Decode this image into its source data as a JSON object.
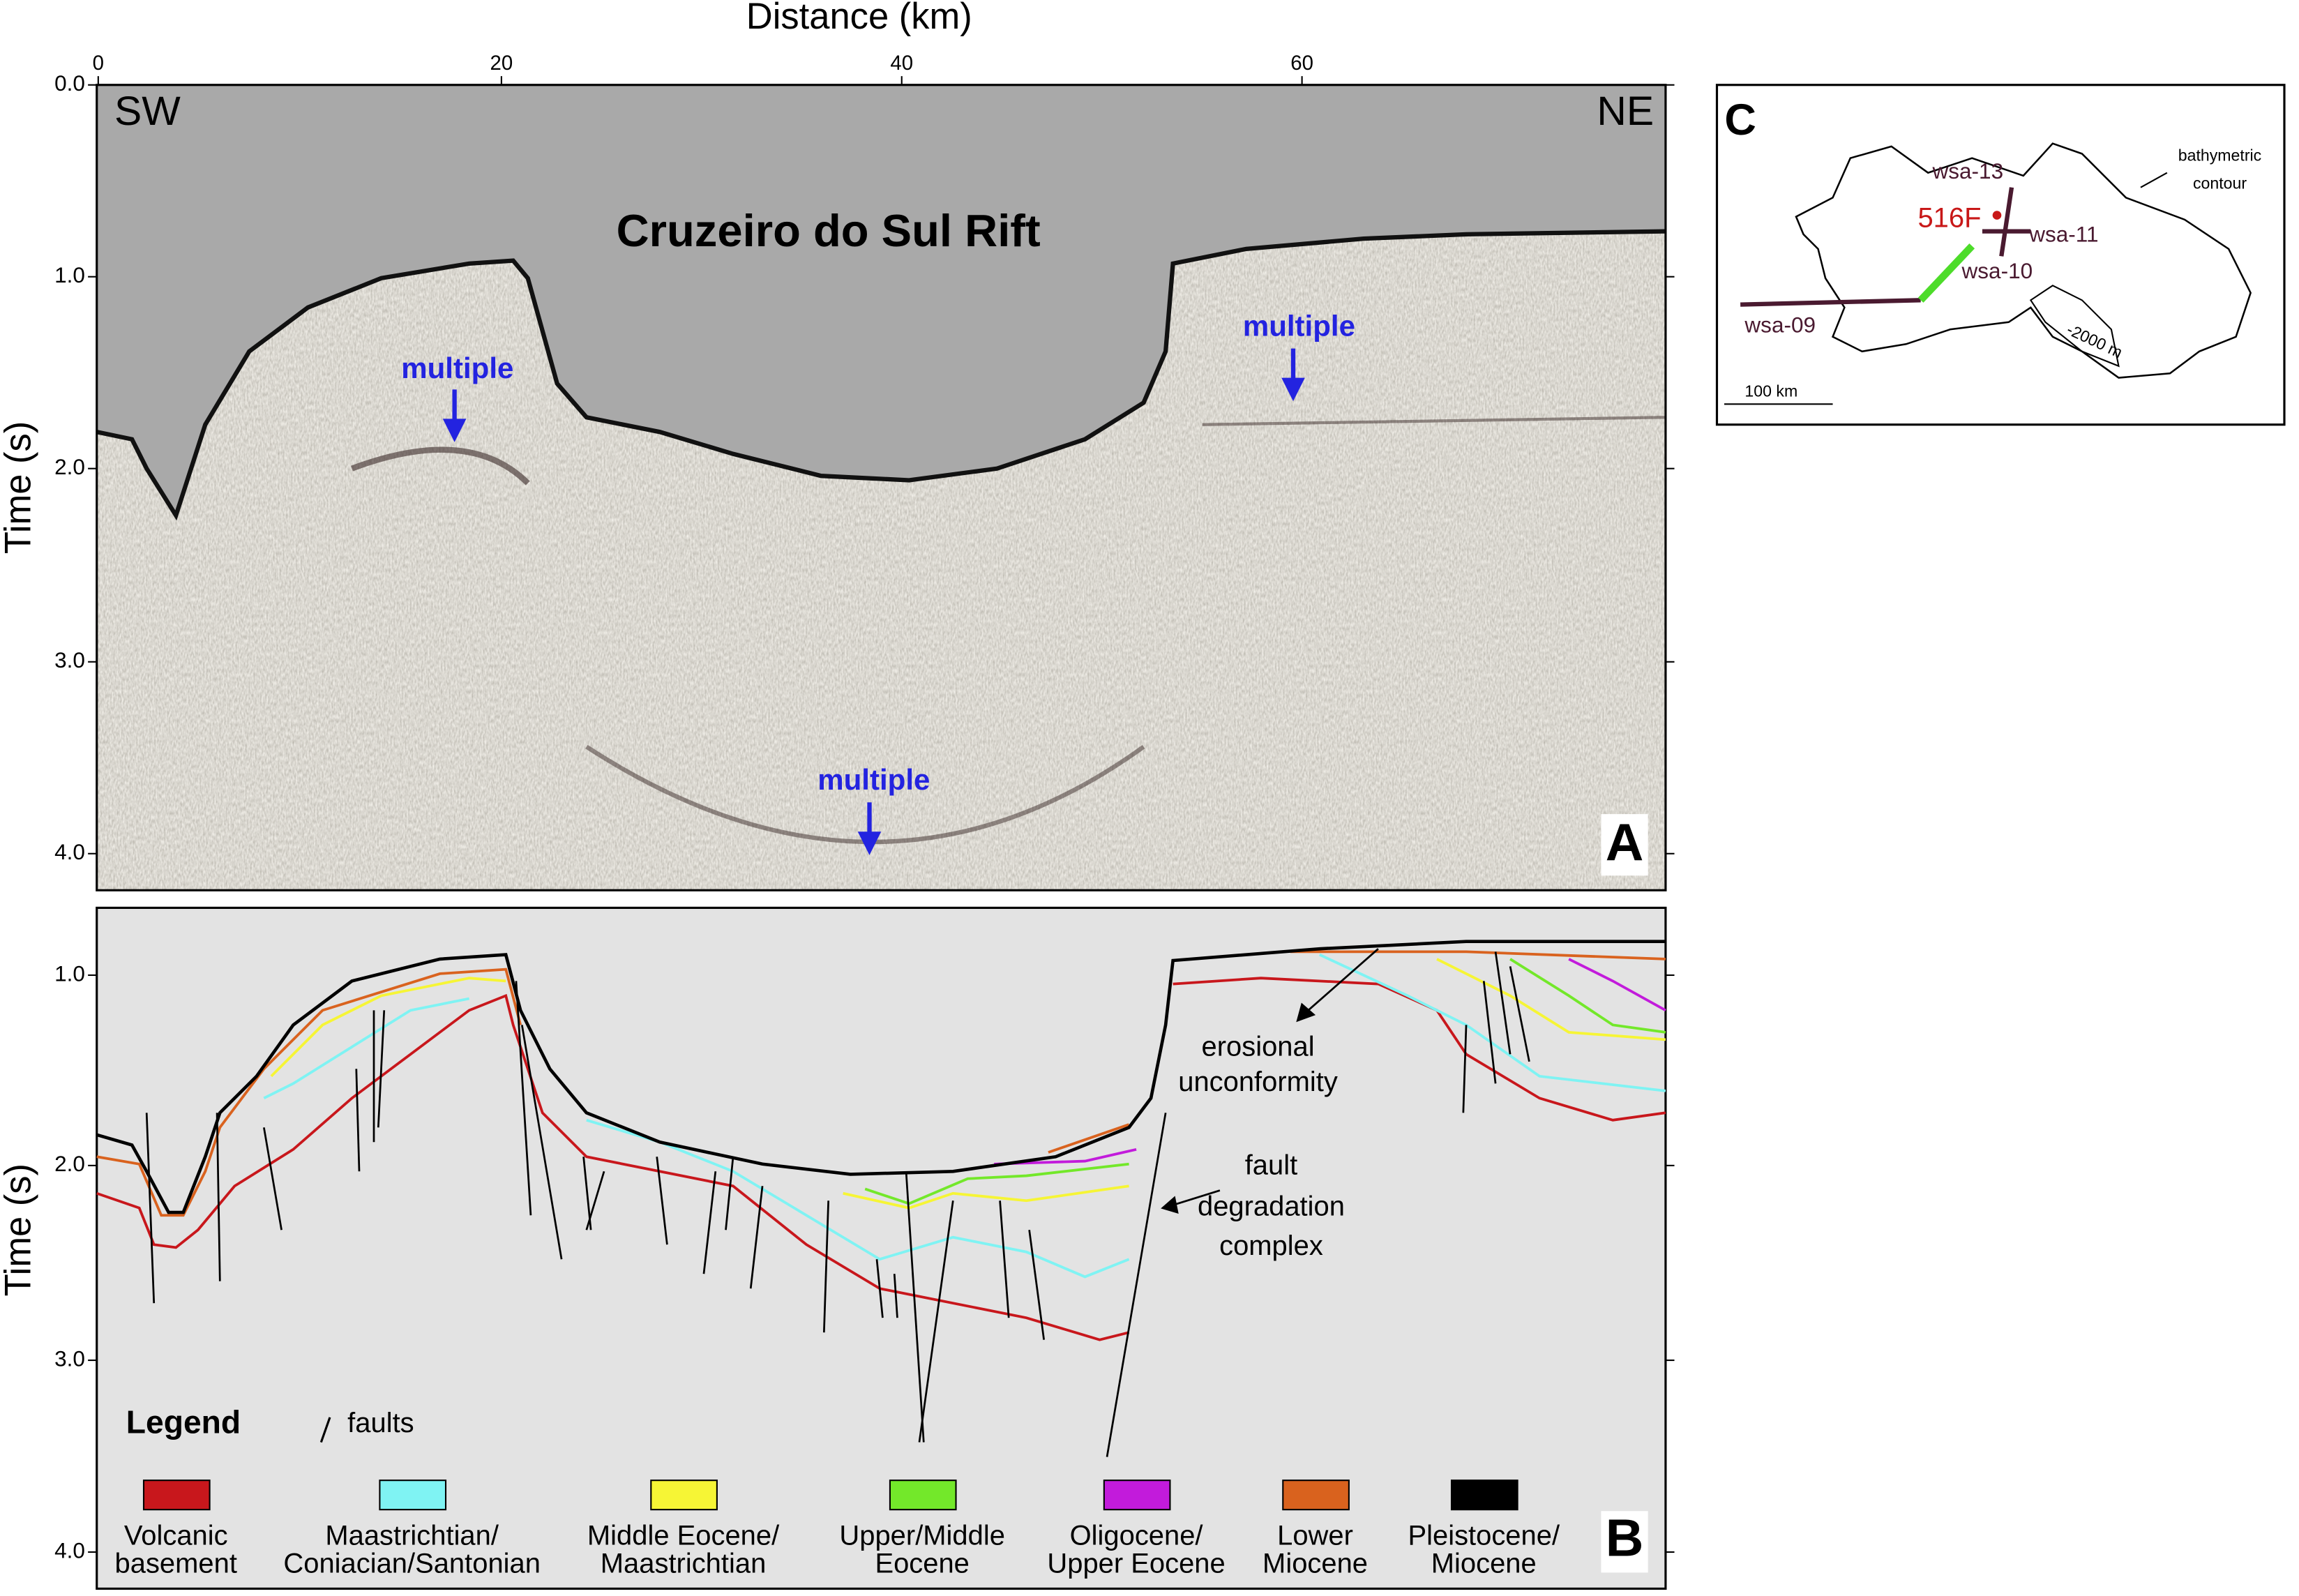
{
  "panel_a": {
    "label": "A",
    "x_axis_title": "Distance (km)",
    "x_ticks": [
      "0",
      "20",
      "40",
      "60"
    ],
    "y_axis_title": "Time (s)",
    "y_ticks": [
      "0.0",
      "1.0",
      "2.0",
      "3.0",
      "4.0"
    ],
    "corner_labels": [
      "SW",
      "NE"
    ],
    "title": "Cruzeiro do Sul Rift",
    "annotations": [
      "multiple",
      "multiple",
      "multiple"
    ]
  },
  "panel_b": {
    "label": "B",
    "y_axis_title": "Time (s)",
    "y_ticks": [
      "1.0",
      "2.0",
      "3.0",
      "4.0"
    ],
    "annotations": [
      [
        "erosional",
        "unconformity"
      ],
      [
        "fault",
        "degradation",
        "complex"
      ]
    ],
    "legend": {
      "title": "Legend",
      "faults": "faults",
      "items": [
        {
          "label": [
            "Volcanic",
            "basement"
          ],
          "color": "#c8171c"
        },
        {
          "label": [
            "Maastrichtian/",
            "Coniacian/Santonian"
          ],
          "color": "#7ff3f3"
        },
        {
          "label": [
            "Middle Eocene/",
            "Maastrichtian"
          ],
          "color": "#f6f535"
        },
        {
          "label": [
            "Upper/Middle",
            "Eocene"
          ],
          "color": "#73e82a"
        },
        {
          "label": [
            "Oligocene/",
            "Upper Eocene"
          ],
          "color": "#c21bdb"
        },
        {
          "label": [
            "Lower",
            "Miocene"
          ],
          "color": "#d9621e"
        },
        {
          "label": [
            "Pleistocene/",
            "Miocene"
          ],
          "color": "#000000"
        }
      ]
    }
  },
  "panel_c": {
    "label": "C",
    "labels": [
      "wsa-13",
      "516F",
      "wsa-11",
      "wsa-10",
      "wsa-09",
      "bathymetric",
      "contour",
      "-2000 m",
      "100 km"
    ]
  }
}
